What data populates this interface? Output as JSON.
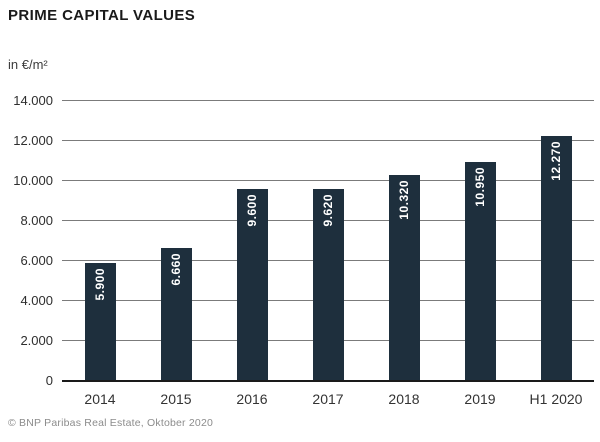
{
  "header": {
    "title": "PRIME CAPITAL VALUES",
    "unit_label": "in €/m²"
  },
  "footer": {
    "credit": "© BNP Paribas Real Estate, Oktober 2020"
  },
  "chart_data": {
    "type": "bar",
    "title": "PRIME CAPITAL VALUES",
    "ylabel": "in €/m²",
    "xlabel": "",
    "categories": [
      "2014",
      "2015",
      "2016",
      "2017",
      "2018",
      "2019",
      "H1 2020"
    ],
    "values": [
      5900,
      6660,
      9600,
      9620,
      10320,
      10950,
      12270
    ],
    "value_labels": [
      "5.900",
      "6.660",
      "9.600",
      "9.620",
      "10.320",
      "10.950",
      "12.270"
    ],
    "ylim": [
      0,
      14000
    ],
    "yticks": [
      0,
      2000,
      4000,
      6000,
      8000,
      10000,
      12000,
      14000
    ],
    "ytick_labels": [
      "0",
      "2.000",
      "4.000",
      "6.000",
      "8.000",
      "10.000",
      "12.000",
      "14.000"
    ],
    "grid": true,
    "legend": "none",
    "value_label_rotation": -90,
    "colors": {
      "bar": "#1e2f3d",
      "bar_label": "#ffffff",
      "gridline": "#7b7b7b",
      "baseline": "#1a1a1a",
      "axis_text": "#333333",
      "title_text": "#1a1a1a",
      "footer_text": "#8c8c8c",
      "background": "#ffffff"
    }
  }
}
